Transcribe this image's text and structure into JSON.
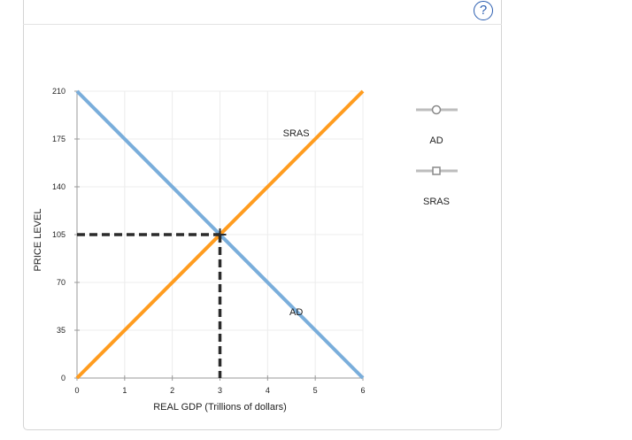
{
  "help": {
    "label": "?"
  },
  "chart_data": {
    "type": "line",
    "xlabel": "REAL GDP (Trillions of dollars)",
    "ylabel": "PRICE LEVEL",
    "xlim": [
      0,
      6
    ],
    "ylim": [
      0,
      210
    ],
    "x_ticks": [
      0,
      1,
      2,
      3,
      4,
      5,
      6
    ],
    "y_ticks": [
      0,
      35,
      70,
      105,
      140,
      175,
      210
    ],
    "grid": true,
    "series": [
      {
        "name": "AD",
        "color": "#7aaedb",
        "points": [
          [
            0,
            210
          ],
          [
            6,
            0
          ]
        ]
      },
      {
        "name": "SRAS",
        "color": "#ff9c1f",
        "points": [
          [
            0,
            0
          ],
          [
            6,
            210
          ]
        ]
      }
    ],
    "equilibrium": {
      "x": 3,
      "y": 105
    },
    "annotations": [
      {
        "text": "SRAS",
        "x": 4.6,
        "y": 177
      },
      {
        "text": "AD",
        "x": 4.6,
        "y": 46
      }
    ],
    "legend": {
      "placement": "right",
      "items": [
        {
          "label": "AD",
          "marker": "circle"
        },
        {
          "label": "SRAS",
          "marker": "square"
        }
      ]
    }
  }
}
